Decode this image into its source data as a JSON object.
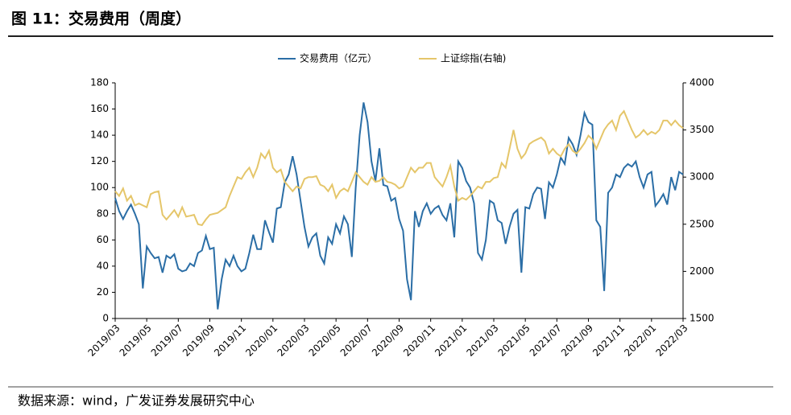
{
  "chart_data": {
    "type": "line",
    "title": "图 11：交易费用（周度）",
    "source": "数据来源：wind，广发证券发展研究中心",
    "categories": [
      "2019/03",
      null,
      null,
      null,
      null,
      null,
      null,
      null,
      "2019/05",
      null,
      null,
      null,
      null,
      null,
      null,
      null,
      "2019/07",
      null,
      null,
      null,
      null,
      null,
      null,
      null,
      "2019/09",
      null,
      null,
      null,
      null,
      null,
      null,
      null,
      "2019/11",
      null,
      null,
      null,
      null,
      null,
      null,
      null,
      "2020/01",
      null,
      null,
      null,
      null,
      null,
      null,
      null,
      "2020/03",
      null,
      null,
      null,
      null,
      null,
      null,
      null,
      "2020/05",
      null,
      null,
      null,
      null,
      null,
      null,
      null,
      "2020/07",
      null,
      null,
      null,
      null,
      null,
      null,
      null,
      "2020/09",
      null,
      null,
      null,
      null,
      null,
      null,
      null,
      "2020/11",
      null,
      null,
      null,
      null,
      null,
      null,
      null,
      "2021/01",
      null,
      null,
      null,
      null,
      null,
      null,
      null,
      "2021/03",
      null,
      null,
      null,
      null,
      null,
      null,
      null,
      "2021/05",
      null,
      null,
      null,
      null,
      null,
      null,
      null,
      "2021/07",
      null,
      null,
      null,
      null,
      null,
      null,
      null,
      "2021/09",
      null,
      null,
      null,
      null,
      null,
      null,
      null,
      "2021/11",
      null,
      null,
      null,
      null,
      null,
      null,
      null,
      "2022/01",
      null,
      null,
      null,
      null,
      null,
      null,
      null,
      "2022/03"
    ],
    "series": [
      {
        "name": "交易费用（亿元）",
        "color": "#2b6ea6",
        "values": [
          92,
          82,
          76,
          82,
          87,
          80,
          72,
          23,
          55,
          50,
          46,
          47,
          35,
          48,
          46,
          49,
          38,
          36,
          37,
          42,
          40,
          50,
          52,
          63,
          53,
          54,
          7,
          30,
          45,
          40,
          48,
          40,
          36,
          38,
          50,
          64,
          53,
          53,
          75,
          66,
          58,
          84,
          85,
          104,
          110,
          124,
          110,
          90,
          70,
          55,
          62,
          65,
          48,
          42,
          62,
          57,
          72,
          65,
          78,
          72,
          47,
          100,
          140,
          165,
          150,
          120,
          105,
          130,
          102,
          101,
          90,
          92,
          76,
          67,
          30,
          14,
          82,
          70,
          82,
          88,
          80,
          84,
          86,
          79,
          75,
          88,
          62,
          120,
          115,
          105,
          100,
          88,
          50,
          45,
          60,
          90,
          88,
          75,
          73,
          57,
          70,
          80,
          83,
          35,
          85,
          84,
          95,
          100,
          99,
          76,
          104,
          100,
          110,
          123,
          118,
          138,
          133,
          125,
          140,
          157,
          150,
          148,
          75,
          70,
          21,
          96,
          100,
          110,
          108,
          115,
          118,
          116,
          120,
          108,
          100,
          110,
          112,
          86,
          90,
          95,
          87,
          108,
          98,
          112,
          110
        ]
      },
      {
        "name": "上证综指(右轴)",
        "color": "#e5c66a",
        "axis": "y2",
        "values": [
          2850,
          2800,
          2880,
          2750,
          2800,
          2700,
          2720,
          2700,
          2680,
          2820,
          2840,
          2850,
          2600,
          2550,
          2600,
          2650,
          2580,
          2680,
          2580,
          2590,
          2600,
          2500,
          2490,
          2550,
          2600,
          2610,
          2620,
          2650,
          2680,
          2800,
          2900,
          3000,
          2980,
          3050,
          3100,
          3000,
          3100,
          3250,
          3200,
          3280,
          3100,
          3050,
          3080,
          2950,
          2900,
          2850,
          2900,
          2880,
          2980,
          3000,
          3000,
          3010,
          2920,
          2900,
          2850,
          2920,
          2780,
          2850,
          2880,
          2850,
          2950,
          3050,
          3000,
          2950,
          2920,
          3000,
          2950,
          2960,
          3000,
          2950,
          2940,
          2920,
          2880,
          2900,
          3000,
          3100,
          3050,
          3100,
          3100,
          3150,
          3150,
          3000,
          2950,
          2900,
          3000,
          3120,
          2900,
          2750,
          2780,
          2760,
          2800,
          2850,
          2900,
          2880,
          2950,
          2950,
          2990,
          3000,
          3150,
          3100,
          3300,
          3500,
          3300,
          3200,
          3250,
          3350,
          3380,
          3400,
          3420,
          3380,
          3250,
          3300,
          3250,
          3220,
          3300,
          3350,
          3280,
          3250,
          3300,
          3360,
          3440,
          3400,
          3300,
          3400,
          3500,
          3560,
          3600,
          3500,
          3650,
          3700,
          3600,
          3500,
          3420,
          3450,
          3500,
          3450,
          3480,
          3460,
          3500,
          3600,
          3600,
          3550,
          3600,
          3550,
          3520
        ]
      }
    ],
    "ylim": [
      0,
      180
    ],
    "yticks": [
      0,
      20,
      40,
      60,
      80,
      100,
      120,
      140,
      160,
      180
    ],
    "y2lim": [
      1500,
      4000
    ],
    "y2ticks": [
      1500,
      2000,
      2500,
      3000,
      3500,
      4000
    ],
    "legend": "top"
  }
}
